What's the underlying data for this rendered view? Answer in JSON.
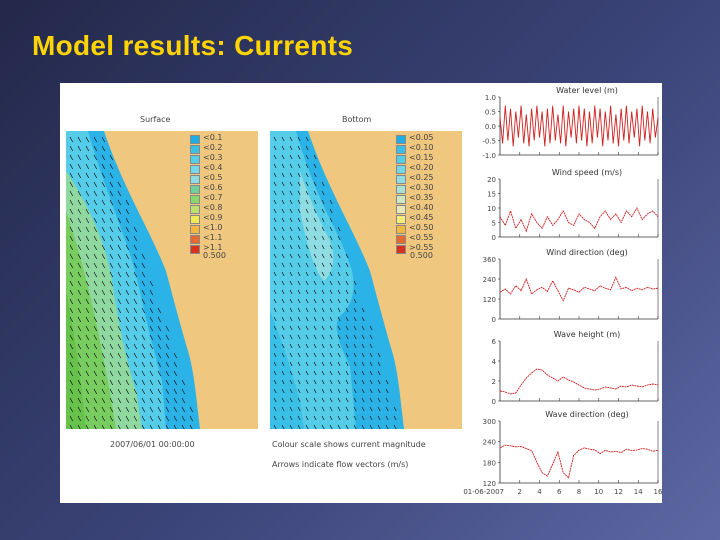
{
  "slide": {
    "title": "Model results: Currents"
  },
  "colors": {
    "title": "#ffd400",
    "sand": "#f0c77e",
    "series": "#d02020"
  },
  "maps": {
    "surface": {
      "title": "Surface",
      "legend": [
        "<0.1",
        "<0.2",
        "<0.3",
        "<0.4",
        "<0.5",
        "<0.6",
        "<0.7",
        "<0.8",
        "<0.9",
        "<1.0",
        "<1.1",
        ">1.1"
      ],
      "legend_colors": [
        "#1faee4",
        "#3ac0e6",
        "#55cce8",
        "#75d7ea",
        "#8fdce2",
        "#6fd09a",
        "#8ad86a",
        "#bfe070",
        "#f2ea55",
        "#f3b640",
        "#e66a30",
        "#d8321f"
      ],
      "scale_label": "0.500"
    },
    "bottom": {
      "title": "Bottom",
      "legend": [
        "<0.05",
        "<0.10",
        "<0.15",
        "<0.20",
        "<0.25",
        "<0.30",
        "<0.35",
        "<0.40",
        "<0.45",
        "<0.50",
        "<0.55",
        ">0.55"
      ],
      "legend_colors": [
        "#1faee4",
        "#3ac0e6",
        "#55cce8",
        "#75d7ea",
        "#8fdce2",
        "#a7e2d2",
        "#cde7c2",
        "#e7eab8",
        "#f6ec7a",
        "#f3b640",
        "#e66a30",
        "#d8321f"
      ],
      "scale_label": "0.500"
    },
    "timestamp": "2007/06/01 00:00:00",
    "caption_line1": "Colour scale shows current magnitude",
    "caption_line2": "Arrows indicate flow vectors (m/s)"
  },
  "chart_data": [
    {
      "type": "line",
      "title": "Water level (m)",
      "yticks": [
        "1.0",
        "0.5",
        "0.0",
        "-0.5",
        "-1.0"
      ],
      "ylim": [
        -1.0,
        1.0
      ],
      "x": [
        0,
        0.5,
        1,
        1.5,
        2,
        2.5,
        3,
        3.5,
        4,
        4.5,
        5,
        5.5,
        6,
        6.5,
        7,
        7.5,
        8,
        8.5,
        9,
        9.5,
        10,
        10.5,
        11,
        11.5,
        12,
        12.5,
        13,
        13.5,
        14,
        14.5,
        15,
        15.5,
        16,
        16.5,
        17,
        17.5,
        18,
        18.5,
        19,
        19.5,
        20,
        20.5,
        21,
        21.5,
        22,
        22.5,
        23,
        23.5,
        24,
        24.5,
        25,
        25.5,
        26,
        26.5,
        27,
        27.5,
        28,
        28.5,
        29,
        29.5,
        30
      ],
      "values": [
        0.3,
        -0.6,
        0.7,
        -0.5,
        0.6,
        -0.7,
        0.5,
        -0.4,
        0.7,
        -0.6,
        0.4,
        -0.7,
        0.6,
        -0.5,
        0.7,
        -0.4,
        0.5,
        -0.7,
        0.6,
        -0.6,
        0.7,
        -0.5,
        0.4,
        -0.6,
        0.7,
        -0.7,
        0.5,
        -0.4,
        0.6,
        -0.6,
        0.7,
        -0.5,
        0.6,
        -0.7,
        0.5,
        -0.6,
        0.7,
        -0.4,
        0.6,
        -0.7,
        0.5,
        -0.5,
        0.7,
        -0.6,
        0.4,
        -0.7,
        0.6,
        -0.5,
        0.7,
        -0.6,
        0.5,
        -0.4,
        0.6,
        -0.7,
        0.7,
        -0.5,
        0.5,
        -0.6,
        0.6,
        -0.4,
        0.3
      ],
      "xlim": [
        0,
        30
      ]
    },
    {
      "type": "line",
      "title": "Wind speed (m/s)",
      "yticks": [
        "20",
        "15",
        "10",
        "5",
        "0"
      ],
      "ylim": [
        0,
        20
      ],
      "x": [
        0,
        1,
        2,
        3,
        4,
        5,
        6,
        7,
        8,
        9,
        10,
        11,
        12,
        13,
        14,
        15,
        16,
        17,
        18,
        19,
        20,
        21,
        22,
        23,
        24,
        25,
        26,
        27,
        28,
        29,
        30
      ],
      "values": [
        7,
        4,
        9,
        3,
        6,
        2,
        8,
        5,
        3,
        7,
        4,
        6,
        9,
        5,
        4,
        8,
        6,
        5,
        3,
        7,
        9,
        6,
        8,
        5,
        9,
        7,
        10,
        6,
        8,
        9,
        7
      ],
      "xlim": [
        0,
        30
      ]
    },
    {
      "type": "line",
      "title": "Wind direction (deg)",
      "yticks": [
        "360",
        "240",
        "120",
        "0"
      ],
      "ylim": [
        0,
        360
      ],
      "x": [
        0,
        1,
        2,
        3,
        4,
        5,
        6,
        7,
        8,
        9,
        10,
        11,
        12,
        13,
        14,
        15,
        16,
        17,
        18,
        19,
        20,
        21,
        22,
        23,
        24,
        25,
        26,
        27,
        28,
        29,
        30
      ],
      "values": [
        160,
        180,
        150,
        200,
        170,
        240,
        150,
        175,
        190,
        165,
        230,
        170,
        110,
        185,
        175,
        160,
        190,
        180,
        170,
        200,
        185,
        175,
        250,
        180,
        190,
        170,
        185,
        175,
        190,
        180,
        185
      ],
      "xlim": [
        0,
        30
      ]
    },
    {
      "type": "line",
      "title": "Wave height (m)",
      "yticks": [
        "6",
        "4",
        "2",
        "0"
      ],
      "ylim": [
        0,
        6
      ],
      "x": [
        0,
        1,
        2,
        3,
        4,
        5,
        6,
        7,
        8,
        9,
        10,
        11,
        12,
        13,
        14,
        15,
        16,
        17,
        18,
        19,
        20,
        21,
        22,
        23,
        24,
        25,
        26,
        27,
        28,
        29,
        30
      ],
      "values": [
        1.0,
        0.9,
        0.7,
        0.8,
        1.6,
        2.3,
        2.8,
        3.2,
        3.1,
        2.6,
        2.3,
        2.0,
        2.4,
        2.1,
        1.9,
        1.6,
        1.3,
        1.2,
        1.1,
        1.2,
        1.4,
        1.3,
        1.2,
        1.5,
        1.4,
        1.6,
        1.5,
        1.4,
        1.6,
        1.7,
        1.6
      ],
      "xlim": [
        0,
        30
      ]
    },
    {
      "type": "line",
      "title": "Wave direction (deg)",
      "yticks": [
        "300",
        "240",
        "180",
        "120"
      ],
      "ylim": [
        120,
        300
      ],
      "x": [
        0,
        1,
        2,
        3,
        4,
        5,
        6,
        7,
        8,
        9,
        10,
        11,
        12,
        13,
        14,
        15,
        16,
        17,
        18,
        19,
        20,
        21,
        22,
        23,
        24,
        25,
        26,
        27,
        28,
        29,
        30
      ],
      "values": [
        222,
        230,
        228,
        225,
        226,
        220,
        214,
        180,
        150,
        140,
        175,
        210,
        150,
        135,
        200,
        215,
        222,
        218,
        216,
        205,
        215,
        210,
        212,
        208,
        218,
        214,
        216,
        220,
        218,
        212,
        215
      ],
      "xlim": [
        0,
        30
      ],
      "xticks": [
        "01-06-2007",
        "2",
        "4",
        "6",
        "8",
        "10",
        "12",
        "14",
        "16"
      ]
    }
  ]
}
